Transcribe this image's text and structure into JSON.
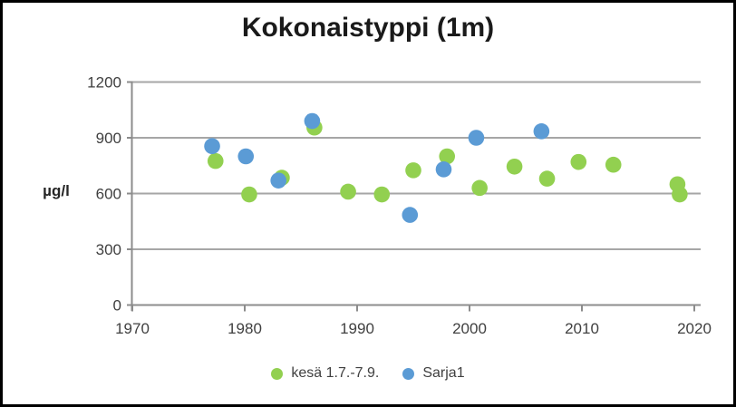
{
  "window": {
    "background": "#FFFFFF",
    "border_color": "#000000"
  },
  "colors": {
    "series_kesa": "#92D050",
    "series_sarja1": "#5B9BD5",
    "gridline": "#A6A6A6",
    "axis": "#8C8C8C",
    "tick_text": "#404040",
    "title_text": "#1A1A1A"
  },
  "chart_data": {
    "type": "scatter",
    "title": "Kokonaistyppi (1m)",
    "xlabel": "",
    "ylabel": "µg/l",
    "xlim": [
      1970,
      2020
    ],
    "ylim": [
      0,
      1200
    ],
    "xticks": [
      1970,
      1980,
      1990,
      2000,
      2010,
      2020
    ],
    "yticks": [
      0,
      300,
      600,
      900,
      1200
    ],
    "grid": "horizontal-gridlines-only",
    "legend_position": "bottom-center",
    "marker": "circle",
    "series": [
      {
        "name": "kesä 1.7.-7.9.",
        "color": "#92D050",
        "points": [
          [
            1977.4,
            775
          ],
          [
            1980.4,
            595
          ],
          [
            1983.3,
            685
          ],
          [
            1986.2,
            955
          ],
          [
            1989.2,
            610
          ],
          [
            1992.2,
            595
          ],
          [
            1995.0,
            725
          ],
          [
            1998.0,
            800
          ],
          [
            2000.9,
            630
          ],
          [
            2004.0,
            745
          ],
          [
            2006.9,
            680
          ],
          [
            2009.7,
            770
          ],
          [
            2012.8,
            755
          ],
          [
            2018.5,
            650
          ],
          [
            2018.7,
            595
          ]
        ]
      },
      {
        "name": "Sarja1",
        "color": "#5B9BD5",
        "points": [
          [
            1977.1,
            855
          ],
          [
            1980.1,
            800
          ],
          [
            1983.0,
            670
          ],
          [
            1986.0,
            990
          ],
          [
            1994.7,
            485
          ],
          [
            1997.7,
            730
          ],
          [
            2000.6,
            900
          ],
          [
            2006.4,
            935
          ]
        ]
      }
    ]
  }
}
